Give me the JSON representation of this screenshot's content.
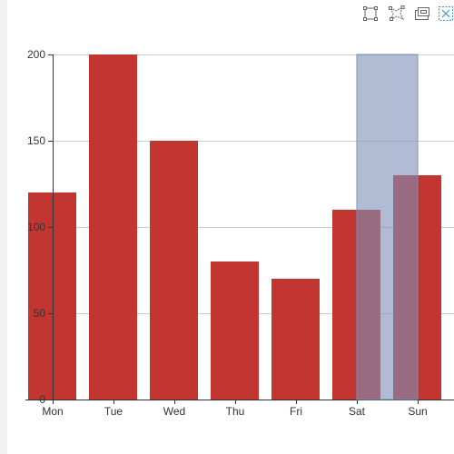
{
  "toolbox": {
    "items": [
      {
        "id": "rect-select",
        "icon": "rect-select-icon"
      },
      {
        "id": "lasso-select",
        "icon": "lasso-select-icon"
      },
      {
        "id": "keep-selection",
        "icon": "keep-selection-icon"
      },
      {
        "id": "clear-selection",
        "icon": "clear-selection-icon"
      }
    ]
  },
  "chart_data": {
    "type": "bar",
    "title": "",
    "xlabel": "",
    "ylabel": "",
    "categories": [
      "Mon",
      "Tue",
      "Wed",
      "Thu",
      "Fri",
      "Sat",
      "Sun"
    ],
    "series": [
      {
        "values": [
          120,
          200,
          150,
          80,
          70,
          110,
          130
        ],
        "color": "#c23531"
      }
    ],
    "ylim": [
      0,
      200
    ],
    "y_ticks": [
      "0",
      "50",
      "100",
      "150",
      "200"
    ],
    "grid": true,
    "brush": {
      "from_category": "Sat",
      "to_category": "Sun",
      "color": "#7b8fb8"
    }
  }
}
